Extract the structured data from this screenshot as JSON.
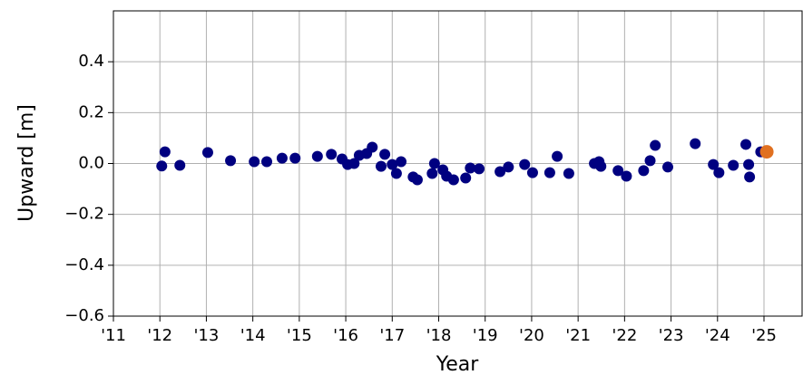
{
  "chart_data": {
    "type": "scatter",
    "xlabel": "Year",
    "ylabel": "Upward [m]",
    "xlim": [
      2011,
      2025.82
    ],
    "ylim": [
      -0.6,
      0.6
    ],
    "xticks": [
      {
        "value": 2011,
        "label": "'11"
      },
      {
        "value": 2012,
        "label": "'12"
      },
      {
        "value": 2013,
        "label": "'13"
      },
      {
        "value": 2014,
        "label": "'14"
      },
      {
        "value": 2015,
        "label": "'15"
      },
      {
        "value": 2016,
        "label": "'16"
      },
      {
        "value": 2017,
        "label": "'17"
      },
      {
        "value": 2018,
        "label": "'18"
      },
      {
        "value": 2019,
        "label": "'19"
      },
      {
        "value": 2020,
        "label": "'20"
      },
      {
        "value": 2021,
        "label": "'21"
      },
      {
        "value": 2022,
        "label": "'22"
      },
      {
        "value": 2023,
        "label": "'23"
      },
      {
        "value": 2024,
        "label": "'24"
      },
      {
        "value": 2025,
        "label": "'25"
      }
    ],
    "yticks": [
      {
        "value": -0.6,
        "label": "−0.6"
      },
      {
        "value": -0.4,
        "label": "−0.4"
      },
      {
        "value": -0.2,
        "label": "−0.2"
      },
      {
        "value": 0,
        "label": "0.0"
      },
      0.2,
      0.4
    ],
    "grid": true,
    "series": [
      {
        "color": "#000080",
        "size": 6,
        "x": [
          2012.04,
          2012.11,
          2012.43,
          2013.03,
          2013.52,
          2014.03,
          2014.3,
          2014.63,
          2014.91,
          2015.39,
          2015.69,
          2015.92,
          2016.04,
          2016.18,
          2016.29,
          2016.45,
          2016.57,
          2016.76,
          2016.84,
          2017.0,
          2017.09,
          2017.19,
          2017.45,
          2017.54,
          2017.86,
          2017.91,
          2018.09,
          2018.17,
          2018.32,
          2018.58,
          2018.68,
          2018.87,
          2019.32,
          2019.5,
          2019.85,
          2020.02,
          2020.39,
          2020.55,
          2020.8,
          2021.35,
          2021.45,
          2021.49,
          2021.86,
          2022.04,
          2022.41,
          2022.55,
          2022.66,
          2022.93,
          2023.52,
          2023.91,
          2024.03,
          2024.34,
          2024.61,
          2024.67,
          2024.69,
          2024.93
        ],
        "values": [
          -0.01,
          0.046,
          -0.007,
          0.043,
          0.011,
          0.007,
          0.007,
          0.021,
          0.021,
          0.028,
          0.036,
          0.018,
          -0.004,
          0.0,
          0.032,
          0.039,
          0.064,
          -0.011,
          0.036,
          -0.004,
          -0.039,
          0.007,
          -0.053,
          -0.064,
          -0.039,
          0.0,
          -0.025,
          -0.05,
          -0.064,
          -0.057,
          -0.018,
          -0.021,
          -0.032,
          -0.014,
          -0.004,
          -0.036,
          -0.036,
          0.028,
          -0.039,
          0.0,
          0.007,
          -0.011,
          -0.028,
          -0.05,
          -0.028,
          0.011,
          0.071,
          -0.014,
          0.078,
          -0.004,
          -0.036,
          -0.007,
          0.075,
          -0.004,
          -0.053,
          0.046
        ]
      },
      {
        "color": "#e07020",
        "size": 7.5,
        "x": [
          2025.06
        ],
        "values": [
          0.046
        ]
      }
    ]
  }
}
